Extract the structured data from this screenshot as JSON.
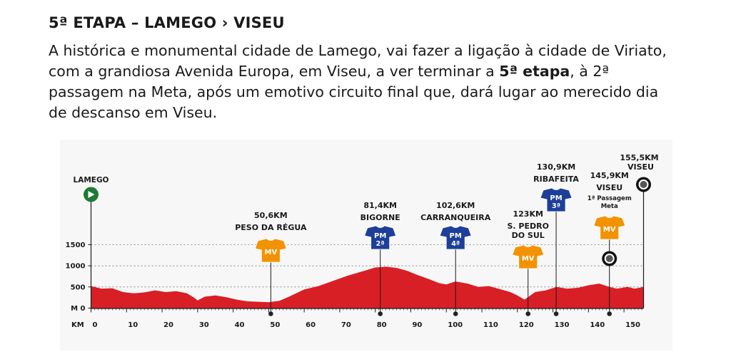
{
  "header": {
    "title": "5ª ETAPA – LAMEGO › VISEU",
    "desc_part1": "A histórica e monumental cidade de Lamego, vai fazer a ligação à cidade de Viriato, com a grandiosa Avenida Europa, em Viseu, a ver terminar a ",
    "desc_bold": "5ª etapa",
    "desc_part2": ", à 2ª passagem na Meta, após um emotivo circuito final que, dará lugar ao merecido dia de descanso em Viseu."
  },
  "colors": {
    "profile": "#d91f26",
    "mv": "#f39200",
    "pm": "#1d3f99",
    "start": "#1e7a35",
    "marker": "#222222"
  },
  "chart_data": {
    "type": "area",
    "xlabel": "KM",
    "xlim": [
      0,
      155.5
    ],
    "ylim": [
      0,
      1500
    ],
    "x_ticks": [
      0,
      10,
      20,
      30,
      40,
      50,
      60,
      70,
      80,
      90,
      100,
      110,
      120,
      130,
      140,
      150
    ],
    "x_tick_labels": [
      "0",
      "10",
      "20",
      "30",
      "40",
      "50",
      "60",
      "70",
      "80",
      "90",
      "100",
      "110",
      "120",
      "130",
      "140",
      "150"
    ],
    "y_ticks": [
      0,
      500,
      1000,
      1500
    ],
    "y_tick_labels": [
      "M 0",
      "500",
      "1000",
      "1500"
    ],
    "profile": [
      [
        0,
        520
      ],
      [
        3,
        460
      ],
      [
        6,
        470
      ],
      [
        9,
        380
      ],
      [
        12,
        350
      ],
      [
        15,
        370
      ],
      [
        18,
        420
      ],
      [
        21,
        380
      ],
      [
        24,
        400
      ],
      [
        27,
        350
      ],
      [
        29,
        250
      ],
      [
        30,
        180
      ],
      [
        32,
        270
      ],
      [
        35,
        300
      ],
      [
        38,
        260
      ],
      [
        41,
        200
      ],
      [
        44,
        160
      ],
      [
        47,
        150
      ],
      [
        50,
        140
      ],
      [
        53,
        170
      ],
      [
        56,
        280
      ],
      [
        60,
        440
      ],
      [
        64,
        520
      ],
      [
        68,
        640
      ],
      [
        72,
        760
      ],
      [
        76,
        860
      ],
      [
        80,
        960
      ],
      [
        83,
        980
      ],
      [
        86,
        950
      ],
      [
        89,
        880
      ],
      [
        92,
        780
      ],
      [
        95,
        690
      ],
      [
        98,
        590
      ],
      [
        100,
        560
      ],
      [
        102.6,
        630
      ],
      [
        106,
        580
      ],
      [
        109,
        500
      ],
      [
        112,
        520
      ],
      [
        115,
        450
      ],
      [
        118,
        380
      ],
      [
        120,
        300
      ],
      [
        122,
        200
      ],
      [
        123,
        260
      ],
      [
        125,
        380
      ],
      [
        128,
        420
      ],
      [
        131,
        500
      ],
      [
        134,
        460
      ],
      [
        137,
        480
      ],
      [
        140,
        540
      ],
      [
        143,
        580
      ],
      [
        145.9,
        500
      ],
      [
        148,
        460
      ],
      [
        151,
        500
      ],
      [
        153,
        460
      ],
      [
        155.5,
        500
      ]
    ],
    "start": {
      "name": "LAMEGO",
      "km": 0
    },
    "finish": {
      "km_label": "155,5KM",
      "name": "VISEU",
      "km": 155.5
    },
    "intermediate_finish": {
      "km_label": "145,9KM",
      "name": "VISEU",
      "note_line1": "1ª Passagem",
      "note_line2": "Meta",
      "km": 145.9
    },
    "points": [
      {
        "km": 50.6,
        "km_label": "50,6KM",
        "name_lines": [
          "PESO DA RÉGUA"
        ],
        "type": "MV",
        "label": "MV",
        "cat": ""
      },
      {
        "km": 81.4,
        "km_label": "81,4KM",
        "name_lines": [
          "BIGORNE"
        ],
        "type": "PM",
        "label": "PM",
        "cat": "2ª"
      },
      {
        "km": 102.6,
        "km_label": "102,6KM",
        "name_lines": [
          "CARRANQUEIRA"
        ],
        "type": "PM",
        "label": "PM",
        "cat": "4ª"
      },
      {
        "km": 123,
        "km_label": "123KM",
        "name_lines": [
          "S. PEDRO",
          "DO SUL"
        ],
        "type": "MV",
        "label": "MV",
        "cat": ""
      },
      {
        "km": 130.9,
        "km_label": "130,9KM",
        "name_lines": [
          "RIBAFEITA"
        ],
        "type": "PM",
        "label": "PM",
        "cat": "3ª"
      }
    ]
  }
}
